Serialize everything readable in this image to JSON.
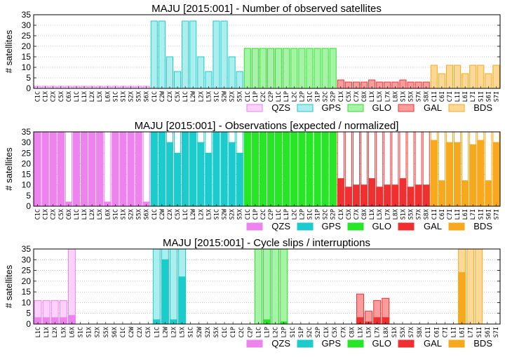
{
  "figure": {
    "ylabel": "# satellites",
    "yticks": [
      0,
      5,
      10,
      15,
      20,
      25,
      30,
      35
    ],
    "systems": [
      {
        "name": "QZS",
        "color": "#ee82ee",
        "light": "#fcd2fc"
      },
      {
        "name": "GPS",
        "color": "#1ccbcb",
        "light": "#aaeeee"
      },
      {
        "name": "GLO",
        "color": "#26e626",
        "light": "#a6f2a6"
      },
      {
        "name": "GAL",
        "color": "#f03030",
        "light": "#fa9c9c"
      },
      {
        "name": "BDS",
        "color": "#f8a81c",
        "light": "#fbd896"
      }
    ]
  },
  "chart_data": [
    {
      "type": "bar",
      "title": "MAJU [2015:001] - Number of observed satellites",
      "ylabel": "# satellites",
      "ylim": [
        0,
        35
      ],
      "grid": true,
      "legend": "bottom-right",
      "categories": [
        "C1C",
        "C1X",
        "C2X",
        "C5X",
        "C6X",
        "L1C",
        "L1X",
        "L2X",
        "L5X",
        "L6X",
        "S1C",
        "S1X",
        "S2X",
        "S5X",
        "S6X",
        "C1C",
        "C2W",
        "C2X",
        "C5X",
        "L1C",
        "L2W",
        "L2X",
        "L5X",
        "S1C",
        "S2W",
        "S2X",
        "S5X",
        "C1C",
        "C1P",
        "C2C",
        "C2P",
        "L1C",
        "L1P",
        "L2C",
        "L2P",
        "S1C",
        "S1P",
        "S2C",
        "S2P",
        "C1X",
        "C5X",
        "C7X",
        "C8X",
        "L1X",
        "L5X",
        "L7X",
        "L8X",
        "S1X",
        "S5X",
        "S7X",
        "S8X",
        "C1I",
        "C6I",
        "C7I",
        "L1I",
        "L6I",
        "L7I",
        "S1I",
        "S6I",
        "S7I"
      ],
      "system_index": [
        0,
        0,
        0,
        0,
        0,
        0,
        0,
        0,
        0,
        0,
        0,
        0,
        0,
        0,
        0,
        1,
        1,
        1,
        1,
        1,
        1,
        1,
        1,
        1,
        1,
        1,
        1,
        2,
        2,
        2,
        2,
        2,
        2,
        2,
        2,
        2,
        2,
        2,
        2,
        3,
        3,
        3,
        3,
        3,
        3,
        3,
        3,
        3,
        3,
        3,
        3,
        4,
        4,
        4,
        4,
        4,
        4,
        4,
        4,
        4
      ],
      "values": [
        1,
        1,
        1,
        1,
        1,
        1,
        1,
        1,
        1,
        1,
        1,
        1,
        1,
        1,
        1,
        32,
        32,
        15,
        8,
        32,
        32,
        15,
        8,
        32,
        32,
        15,
        8,
        19,
        19,
        19,
        19,
        19,
        19,
        19,
        19,
        19,
        19,
        19,
        19,
        4,
        3,
        3,
        3,
        4,
        3,
        3,
        3,
        4,
        3,
        3,
        3,
        11,
        7,
        11,
        11,
        7,
        11,
        11,
        7,
        11
      ]
    },
    {
      "type": "bar",
      "title": "MAJU [2015:001] - Observations [expected / normalized]",
      "ylabel": "# satellites",
      "ylim": [
        0,
        35
      ],
      "grid": true,
      "legend": "bottom-right",
      "categories": [
        "C1C",
        "C1X",
        "C2X",
        "C5X",
        "C6X",
        "L1C",
        "L1X",
        "L2X",
        "L5X",
        "L6X",
        "S1C",
        "S1X",
        "S2X",
        "S5X",
        "S6X",
        "C1C",
        "C2W",
        "C2X",
        "C5X",
        "L1C",
        "L2W",
        "L2X",
        "L5X",
        "S1C",
        "S2W",
        "S2X",
        "S5X",
        "C1C",
        "C1P",
        "C2C",
        "C2P",
        "L1C",
        "L1P",
        "L2C",
        "L2P",
        "S1C",
        "S1P",
        "S2C",
        "S2P",
        "C1X",
        "C5X",
        "C7X",
        "C8X",
        "L1X",
        "L5X",
        "L7X",
        "L8X",
        "S1X",
        "S5X",
        "S7X",
        "S8X",
        "C1I",
        "C6I",
        "C7I",
        "L1I",
        "L6I",
        "L7I",
        "S1I",
        "S6I",
        "S7I"
      ],
      "x_tick_labels": [
        "C1C",
        "C1X",
        "C2X",
        "C5X",
        "C6X",
        "L1C",
        "L1X",
        "L2X",
        "L5X",
        "L6X",
        "S1C",
        "S1X",
        "S2X",
        "S5X",
        "S6X",
        "C1C",
        "C2W",
        "C2X",
        "C5X",
        "L1C",
        "L2W",
        "L2X",
        "L5X",
        "S1C",
        "S2W",
        "S2X",
        "S5X",
        "C1C",
        "C1P",
        "C2C",
        "C2P",
        "L1C",
        "L1P",
        "L2C",
        "L2P",
        "S1C",
        "S1P",
        "S2C",
        "S2P",
        "C1X",
        "C5X",
        "C7X",
        "C8X",
        "L1X",
        "L5X",
        "L7X",
        "L8X",
        "S1X",
        "S5X",
        "S7X",
        "S8X",
        "C1I",
        "C6I",
        "C7I",
        "L1I",
        "L6I",
        "L7I",
        "S1I",
        "S6I",
        "S7I"
      ],
      "system_index": [
        0,
        0,
        0,
        0,
        0,
        0,
        0,
        0,
        0,
        0,
        0,
        0,
        0,
        0,
        0,
        1,
        1,
        1,
        1,
        1,
        1,
        1,
        1,
        1,
        1,
        1,
        1,
        2,
        2,
        2,
        2,
        2,
        2,
        2,
        2,
        2,
        2,
        2,
        2,
        3,
        3,
        3,
        3,
        3,
        3,
        3,
        3,
        3,
        3,
        3,
        3,
        4,
        4,
        4,
        4,
        4,
        4,
        4,
        4,
        4
      ],
      "series": [
        {
          "values": [
            35,
            35,
            35,
            35,
            2,
            35,
            35,
            35,
            35,
            2,
            35,
            35,
            35,
            35,
            2,
            35,
            35,
            30,
            25,
            35,
            35,
            30,
            25,
            35,
            35,
            30,
            25,
            35,
            35,
            35,
            35,
            35,
            35,
            35,
            35,
            35,
            35,
            35,
            35,
            13,
            9,
            10,
            10,
            13,
            9,
            10,
            10,
            13,
            9,
            10,
            10,
            31,
            12,
            30,
            30,
            12,
            29,
            31,
            12,
            30
          ]
        },
        {
          "values": [
            35,
            35,
            35,
            35,
            35,
            35,
            35,
            35,
            35,
            35,
            35,
            35,
            35,
            35,
            35,
            35,
            35,
            35,
            35,
            35,
            35,
            35,
            35,
            35,
            35,
            35,
            35,
            35,
            35,
            35,
            35,
            35,
            35,
            35,
            35,
            35,
            35,
            35,
            35,
            35,
            35,
            35,
            35,
            35,
            35,
            35,
            35,
            35,
            35,
            35,
            35,
            35,
            35,
            35,
            35,
            35,
            35,
            35,
            35,
            35
          ]
        }
      ]
    },
    {
      "type": "bar",
      "title": "MAJU [2015:001] - Cycle slips / interruptions",
      "ylabel": "# satellites",
      "ylim": [
        0,
        35
      ],
      "grid": true,
      "legend": "bottom-right",
      "categories": [
        "L1C",
        "L1X",
        "L2X",
        "L5X",
        "L6X",
        "S1C",
        "S1X",
        "S2X",
        "S5X",
        "S6X",
        "C1C",
        "C2W",
        "C2X",
        "C5X",
        "L1C",
        "L2W",
        "L2X",
        "L5X",
        "S1C",
        "S2W",
        "S2X",
        "S5X",
        "C1C",
        "C1P",
        "C2C",
        "C2P",
        "L1C",
        "L1P",
        "L2C",
        "L2P",
        "S1C",
        "S1P",
        "S2C",
        "S2P",
        "C1X",
        "C5X",
        "C7X",
        "C8X",
        "L1X",
        "L5X",
        "L7X",
        "L8X",
        "S1X",
        "S5X",
        "S7X",
        "S8X",
        "C1I",
        "C6I",
        "C7I",
        "L1I",
        "L6I",
        "L7I",
        "S1I",
        "S6I",
        "S7I"
      ],
      "x_tick_labels": [
        "L1C",
        "L1X",
        "L2X",
        "L5X",
        "L6X",
        "S1C",
        "S1X",
        "S2X",
        "S5X",
        "S6X",
        "C1C",
        "C2W",
        "C2X",
        "C5X",
        "L1C",
        "L2W",
        "L2X",
        "L5X",
        "S1C",
        "S2W",
        "S2X",
        "S5X",
        "C1C",
        "C1P",
        "C2C",
        "C2P",
        "L1C",
        "L1P",
        "L2C",
        "L2P",
        "S1C",
        "S1P",
        "S2C",
        "S2P",
        "C1X",
        "C5X",
        "C7X",
        "C8X",
        "L1X",
        "L5X",
        "L7X",
        "L8X",
        "S1X",
        "S5X",
        "S7X",
        "S8X",
        "C1I",
        "C6I",
        "C7I",
        "L1I",
        "L6I",
        "L7I",
        "S1I",
        "S6I",
        "S7I"
      ],
      "system_index": [
        0,
        0,
        0,
        0,
        0,
        0,
        0,
        0,
        0,
        0,
        1,
        1,
        1,
        1,
        1,
        1,
        1,
        1,
        1,
        1,
        1,
        1,
        2,
        2,
        2,
        2,
        2,
        2,
        2,
        2,
        2,
        2,
        2,
        2,
        3,
        3,
        3,
        3,
        3,
        3,
        3,
        3,
        3,
        3,
        3,
        3,
        4,
        4,
        4,
        4,
        4,
        4,
        4,
        4,
        4
      ],
      "series": [
        {
          "values": [
            3,
            3,
            3,
            3,
            4,
            0,
            0,
            0,
            0,
            0,
            0,
            0,
            0,
            0,
            2,
            30,
            2,
            22,
            0,
            0,
            0,
            0,
            0,
            0,
            0,
            0,
            0,
            2,
            0,
            1,
            0,
            0,
            0,
            0,
            0,
            0,
            0,
            0,
            3,
            1,
            3,
            3,
            0,
            0,
            0,
            0,
            0,
            0,
            0,
            0,
            24,
            0,
            0,
            0,
            0
          ]
        },
        {
          "values": [
            11,
            11,
            11,
            11,
            35,
            0,
            0,
            0,
            0,
            0,
            0,
            0,
            0,
            0,
            35,
            35,
            35,
            35,
            0,
            0,
            0,
            0,
            0,
            0,
            0,
            0,
            35,
            35,
            35,
            35,
            0,
            0,
            0,
            0,
            0,
            0,
            0,
            0,
            14,
            6,
            11,
            12,
            0,
            0,
            0,
            0,
            0,
            0,
            0,
            0,
            35,
            35,
            35,
            0,
            0
          ]
        }
      ]
    }
  ]
}
